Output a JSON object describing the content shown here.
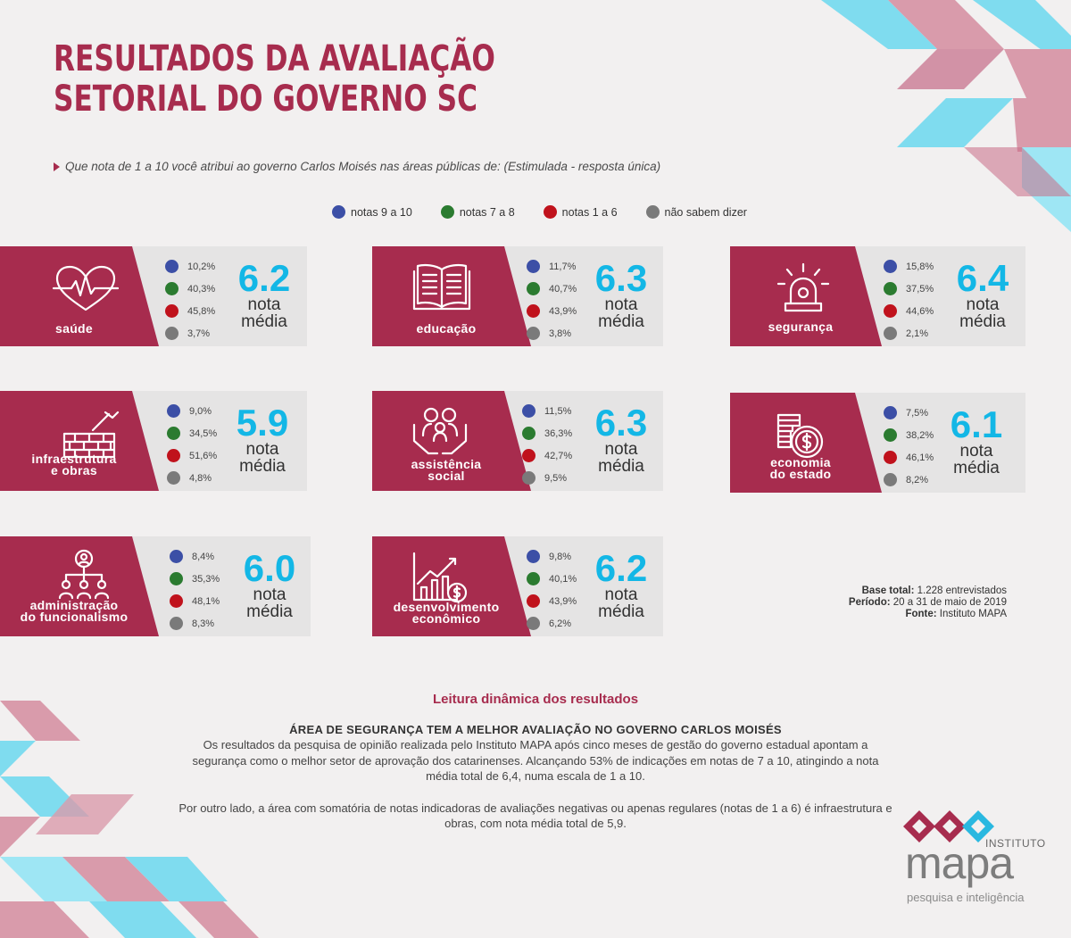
{
  "title": {
    "line1": "RESULTADOS DA AVALIAÇÃO",
    "line2": "SETORIAL DO GOVERNO SC"
  },
  "question": "Que nota de 1 a 10 você atribui ao governo Carlos Moisés nas áreas públicas de:  (Estimulada - resposta única)",
  "legend": [
    {
      "label": "notas 9 a 10",
      "color": "#3c4fa6"
    },
    {
      "label": "notas 7 a 8",
      "color": "#2b7b30"
    },
    {
      "label": "notas 1 a 6",
      "color": "#c0121c"
    },
    {
      "label": "não sabem dizer",
      "color": "#7a7a7a"
    }
  ],
  "chart_data": {
    "type": "table",
    "columns": [
      "notas 9 a 10",
      "notas 7 a 8",
      "notas 1 a 6",
      "não sabem dizer",
      "nota média"
    ],
    "rows": [
      {
        "area": "saúde",
        "values": [
          "10,2%",
          "40,3%",
          "45,8%",
          "3,7%"
        ],
        "mean": "6.2",
        "icon": "heart-pulse-icon"
      },
      {
        "area": "educação",
        "values": [
          "11,7%",
          "40,7%",
          "43,9%",
          "3,8%"
        ],
        "mean": "6.3",
        "icon": "open-book-icon"
      },
      {
        "area": "segurança",
        "values": [
          "15,8%",
          "37,5%",
          "44,6%",
          "2,1%"
        ],
        "mean": "6.4",
        "icon": "siren-icon"
      },
      {
        "area": "infraestrutura e obras",
        "line1": "infraestrutura",
        "line2": "e obras",
        "values": [
          "9,0%",
          "34,5%",
          "51,6%",
          "4,8%"
        ],
        "mean": "5.9",
        "icon": "brick-wall-icon"
      },
      {
        "area": "assistência social",
        "line1": "assistência",
        "line2": "social",
        "values": [
          "11,5%",
          "36,3%",
          "42,7%",
          "9,5%"
        ],
        "mean": "6.3",
        "icon": "family-care-icon"
      },
      {
        "area": "economia do estado",
        "line1": "economia",
        "line2": "do estado",
        "values": [
          "7,5%",
          "38,2%",
          "46,1%",
          "8,2%"
        ],
        "mean": "6.1",
        "icon": "coins-icon"
      },
      {
        "area": "administração do funcionalismo",
        "line1": "administração",
        "line2": "do funcionalismo",
        "values": [
          "8,4%",
          "35,3%",
          "48,1%",
          "8,3%"
        ],
        "mean": "6.0",
        "icon": "org-chart-icon"
      },
      {
        "area": "desenvolvimento econômico",
        "line1": "desenvolvimento",
        "line2": "econômico",
        "values": [
          "9,8%",
          "40,1%",
          "43,9%",
          "6,2%"
        ],
        "mean": "6.2",
        "icon": "growth-chart-icon"
      }
    ],
    "mean_label": {
      "line1": "nota",
      "line2": "média"
    }
  },
  "fine_print": {
    "base_label": "Base total:",
    "base_value": "1.228 entrevistados",
    "period_label": "Período:",
    "period_value": "20 a 31 de maio de 2019",
    "source_label": "Fonte:",
    "source_value": "Instituto MAPA"
  },
  "reading": {
    "title": "Leitura dinâmica dos resultados",
    "heading": "ÁREA DE SEGURANÇA TEM A MELHOR AVALIAÇÃO NO GOVERNO CARLOS MOISÉS",
    "paragraph1": "Os resultados da pesquisa de opinião realizada pelo Instituto MAPA após cinco meses de gestão do governo estadual apontam a segurança como o melhor setor de aprovação dos catarinenses. Alcançando 53% de indicações em notas de 7 a 10, atingindo a nota média total de 6,4, numa escala de 1 a 10.",
    "paragraph2": "Por outro lado, a área com somatória de notas indicadoras de avaliações negativas ou apenas regulares (notas de 1 a 6) é infraestrutura e obras, com nota média total de 5,9."
  },
  "logo": {
    "instituto": "INSTITUTO",
    "name": "mapa",
    "tagline": "pesquisa e inteligência"
  },
  "colors": {
    "maroon": "#a72c4e",
    "cyan": "#13b7e6",
    "pink": "#d99bab",
    "lightcyan": "#7fdcef"
  }
}
